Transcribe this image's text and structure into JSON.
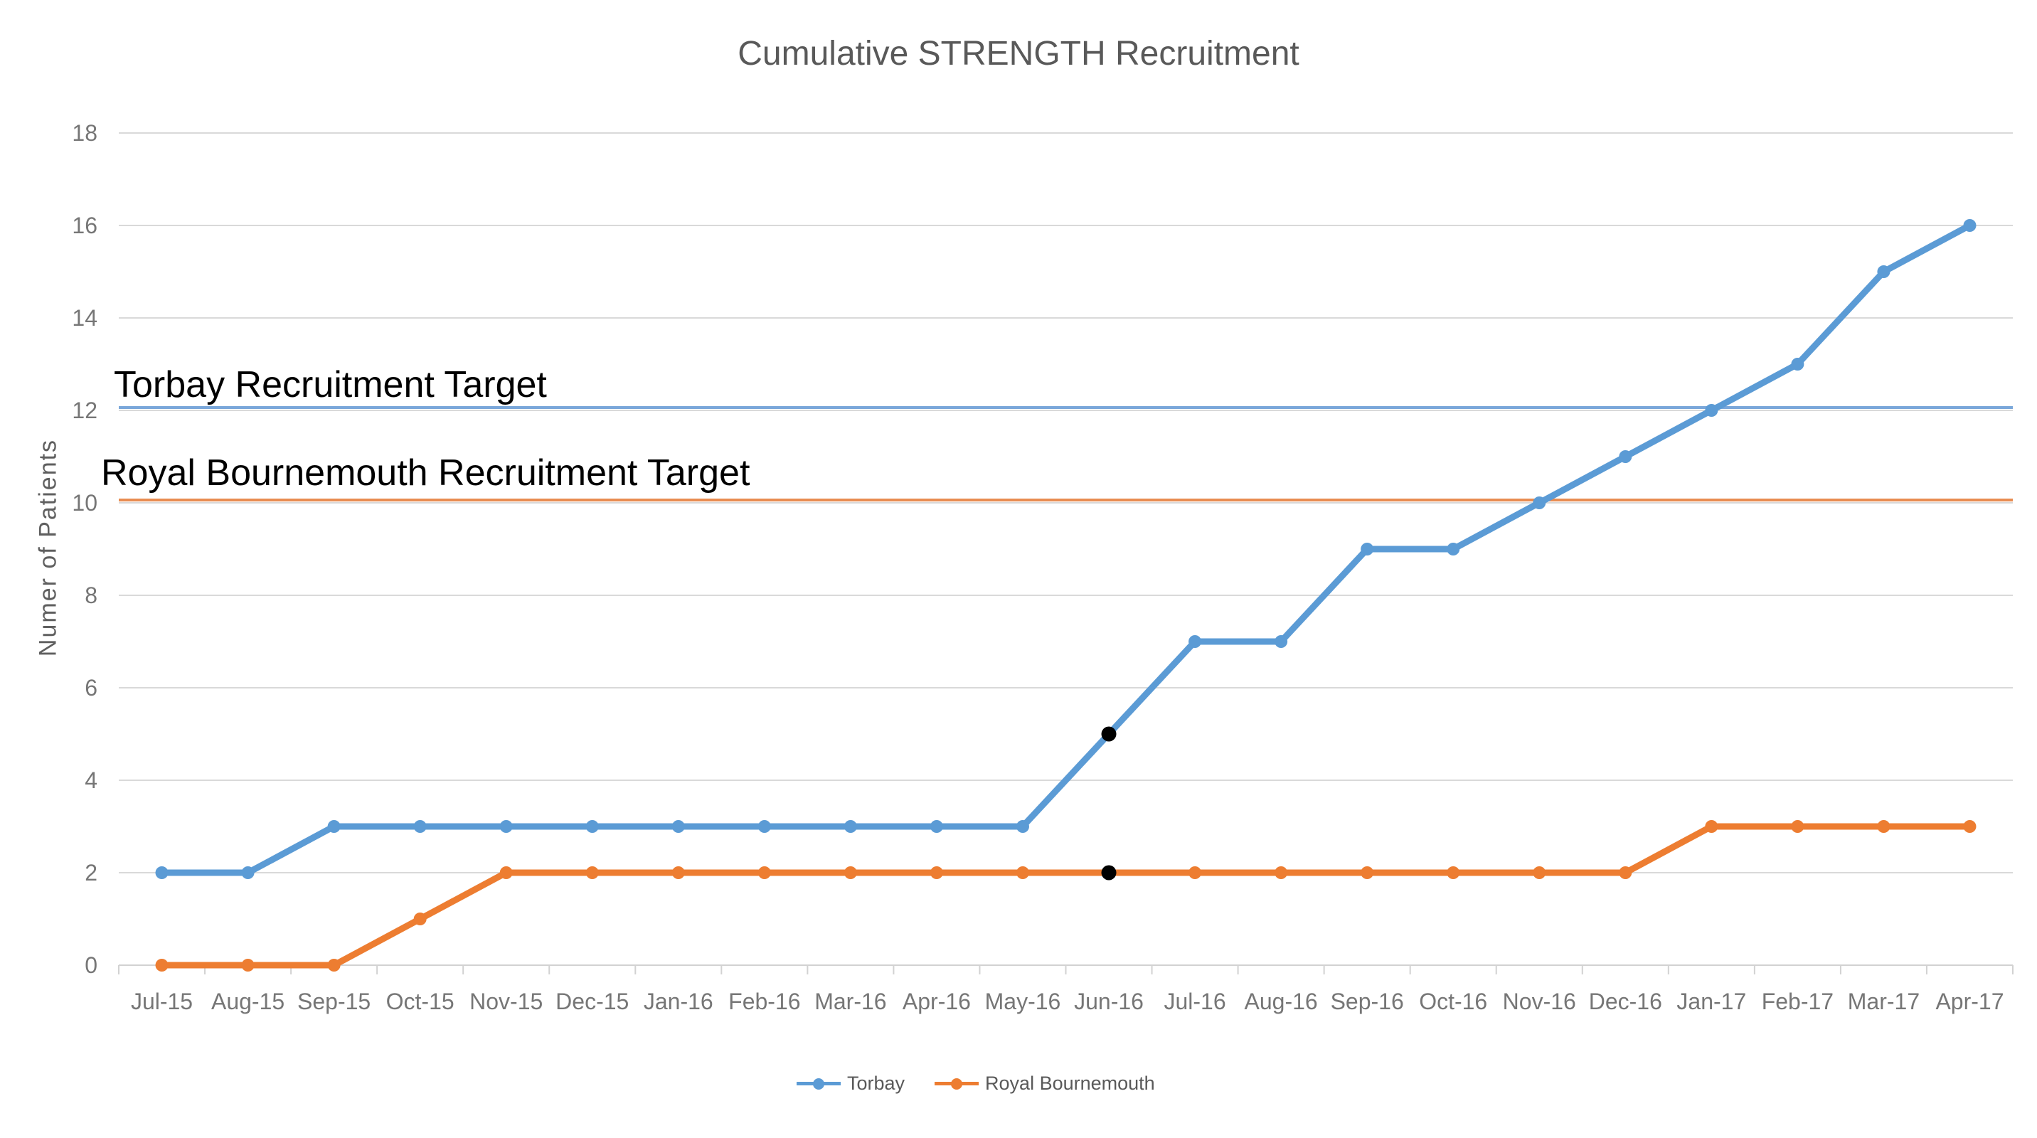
{
  "chart_data": {
    "type": "line",
    "title": "Cumulative STRENGTH Recruitment",
    "xlabel": "",
    "ylabel": "Numer of Patients",
    "ylim": [
      0,
      18
    ],
    "ytick_step": 2,
    "grid": true,
    "legend_position": "bottom",
    "categories": [
      "Jul-15",
      "Aug-15",
      "Sep-15",
      "Oct-15",
      "Nov-15",
      "Dec-15",
      "Jan-16",
      "Feb-16",
      "Mar-16",
      "Apr-16",
      "May-16",
      "Jun-16",
      "Jul-16",
      "Aug-16",
      "Sep-16",
      "Oct-16",
      "Nov-16",
      "Dec-16",
      "Jan-17",
      "Feb-17",
      "Mar-17",
      "Apr-17"
    ],
    "series": [
      {
        "name": "Torbay",
        "color": "#5B9BD5",
        "values": [
          2,
          2,
          3,
          3,
          3,
          3,
          3,
          3,
          3,
          3,
          3,
          5,
          7,
          7,
          9,
          9,
          10,
          11,
          12,
          13,
          15,
          16
        ],
        "highlight_index": 11,
        "highlight_category": "Jun-16",
        "highlight_color": "#000000"
      },
      {
        "name": "Royal Bournemouth",
        "color": "#ED7D31",
        "values": [
          0,
          0,
          0,
          1,
          2,
          2,
          2,
          2,
          2,
          2,
          2,
          2,
          2,
          2,
          2,
          2,
          2,
          2,
          3,
          3,
          3,
          3
        ],
        "highlight_index": 11,
        "highlight_category": "Jun-16",
        "highlight_color": "#000000"
      }
    ],
    "reference_lines": [
      {
        "label": "Torbay Recruitment Target",
        "value": 12,
        "color": "#7AA7DA"
      },
      {
        "label": "Royal Bournemouth Recruitment Target",
        "value": 10,
        "color": "#E88C51"
      }
    ],
    "style": {
      "gridline_color": "#D9D9D9",
      "axis_color": "#D2D2D2",
      "tick_text_color": "#767676",
      "title_text_color": "#595959",
      "annotation_text_color": "#000000"
    }
  }
}
